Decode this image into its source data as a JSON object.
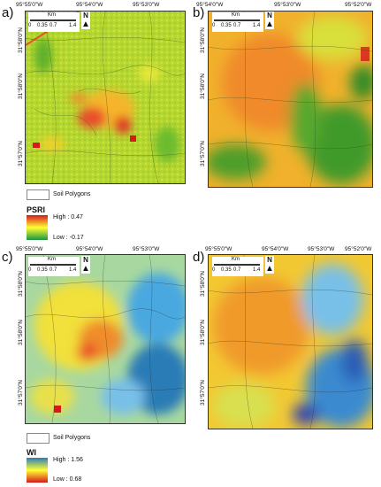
{
  "panels": [
    {
      "id": "a",
      "label": "a)"
    },
    {
      "id": "b",
      "label": "b)"
    },
    {
      "id": "c",
      "label": "c)"
    },
    {
      "id": "d",
      "label": "d)"
    }
  ],
  "longitude_ticks": [
    "95°55'0\"W",
    "95°54'0\"W",
    "95°53'0\"W",
    "95°52'0\"W"
  ],
  "latitude_ticks": [
    "31°58'0\"N",
    "31°58'0\"N",
    "31°57'0\"N"
  ],
  "scale": {
    "unit": "Km",
    "ticks": [
      "0",
      "0.35",
      "0.7",
      "1.4"
    ]
  },
  "north_label": "N",
  "legend_psri": {
    "polygons_label": "Soil Polygons",
    "title": "PSRI",
    "high": "High : 0.47",
    "low": "Low : -0.17",
    "colors": {
      "high": "#d7191c",
      "mid": "#ffff33",
      "low": "#1a9641"
    }
  },
  "legend_wi": {
    "polygons_label": "Soil Polygons",
    "title": "WI",
    "high": "High : 1.56",
    "low": "Low : 0.68",
    "colors": {
      "high": "#2c7bb6",
      "mid": "#ffff33",
      "low": "#d7191c"
    }
  }
}
